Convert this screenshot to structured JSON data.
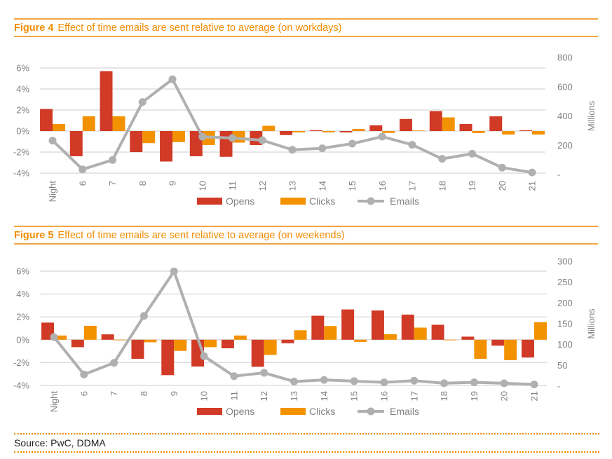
{
  "colors": {
    "opens": "#d13a26",
    "clicks": "#f39200",
    "emails": "#b0b0b0",
    "accent": "#f08c00",
    "grid": "#dedede",
    "axis_text": "#808080"
  },
  "source": "Source: PwC, DDMA",
  "chart_data": [
    {
      "type": "bar",
      "figure_label": "Figure 4",
      "title": "Effect of time emails are sent relative to average (on workdays)",
      "categories": [
        "Night",
        "6",
        "7",
        "8",
        "9",
        "10",
        "11",
        "12",
        "13",
        "14",
        "15",
        "16",
        "17",
        "18",
        "19",
        "20",
        "21"
      ],
      "series": [
        {
          "name": "Opens",
          "type": "bar",
          "axis": "left",
          "values": [
            2.1,
            -2.4,
            5.7,
            -2.0,
            -2.9,
            -2.4,
            -2.45,
            -1.33,
            -0.38,
            0.08,
            -0.13,
            0.55,
            1.15,
            1.9,
            0.67,
            1.4,
            0.07
          ]
        },
        {
          "name": "Clicks",
          "type": "bar",
          "axis": "left",
          "values": [
            0.67,
            1.4,
            1.4,
            -1.15,
            -1.05,
            -1.33,
            -1.1,
            0.5,
            -0.13,
            -0.13,
            0.2,
            -0.18,
            0.05,
            1.3,
            -0.2,
            -0.33,
            -0.33
          ]
        },
        {
          "name": "Emails",
          "type": "line",
          "axis": "right",
          "values": [
            232,
            35,
            99,
            495,
            651,
            258,
            249,
            234,
            169,
            179,
            211,
            259,
            203,
            107,
            142,
            47,
            14
          ]
        }
      ],
      "left_axis": {
        "ticks": [
          "6%",
          "4%",
          "2%",
          "0%",
          "-2%",
          "-4%"
        ],
        "tick_values": [
          6,
          4,
          2,
          0,
          -2,
          -4
        ],
        "range": [
          -4,
          6
        ]
      },
      "right_axis": {
        "label": "Millions",
        "ticks": [
          "800",
          "600",
          "400",
          "200",
          "-"
        ],
        "tick_values": [
          800,
          600,
          400,
          200,
          0
        ],
        "range": [
          0,
          800
        ]
      },
      "legend": [
        "Opens",
        "Clicks",
        "Emails"
      ],
      "legend_position": "bottom",
      "grid": true
    },
    {
      "type": "bar",
      "figure_label": "Figure 5",
      "title": "Effect of time emails are sent relative to average (on weekends)",
      "categories": [
        "Night",
        "6",
        "7",
        "8",
        "9",
        "10",
        "11",
        "12",
        "13",
        "14",
        "15",
        "16",
        "17",
        "18",
        "19",
        "20",
        "21"
      ],
      "series": [
        {
          "name": "Opens",
          "type": "bar",
          "axis": "left",
          "values": [
            1.5,
            -0.65,
            0.47,
            -1.67,
            -3.1,
            -2.35,
            -0.75,
            -2.37,
            -0.31,
            2.1,
            2.65,
            2.56,
            2.2,
            1.31,
            0.27,
            -0.52,
            -1.56
          ]
        },
        {
          "name": "Clicks",
          "type": "bar",
          "axis": "left",
          "values": [
            0.37,
            1.22,
            -0.03,
            -0.22,
            -0.98,
            -0.65,
            0.37,
            -1.33,
            0.83,
            1.2,
            -0.19,
            0.48,
            1.06,
            -0.05,
            -1.67,
            -1.79,
            1.54
          ]
        },
        {
          "name": "Emails",
          "type": "line",
          "axis": "right",
          "values": [
            118,
            28,
            56,
            169,
            276,
            72,
            24,
            32,
            11,
            15,
            12,
            9,
            13,
            7,
            9,
            7,
            4
          ]
        }
      ],
      "left_axis": {
        "ticks": [
          "6%",
          "4%",
          "2%",
          "0%",
          "-2%",
          "-4%"
        ],
        "tick_values": [
          6,
          4,
          2,
          0,
          -2,
          -4
        ],
        "range": [
          -4,
          6
        ]
      },
      "right_axis": {
        "label": "Millions",
        "ticks": [
          "300",
          "250",
          "200",
          "150",
          "100",
          "50",
          "-"
        ],
        "tick_values": [
          300,
          250,
          200,
          150,
          100,
          50,
          0
        ],
        "range": [
          0,
          300
        ]
      },
      "legend": [
        "Opens",
        "Clicks",
        "Emails"
      ],
      "legend_position": "bottom",
      "grid": true
    }
  ]
}
